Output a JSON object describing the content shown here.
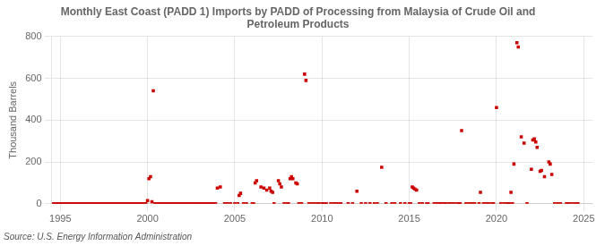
{
  "chart_data": {
    "type": "scatter",
    "title": "Monthly East Coast (PADD 1) Imports by PADD of Processing from Malaysia of Crude Oil and\nPetroleum Products",
    "ylabel": "Thousand Barrels",
    "source": "Source: U.S. Energy Information Administration",
    "color": "#cc0000",
    "marker": "square",
    "grid": true,
    "legend": false,
    "xlim": [
      1994.5,
      2025.5
    ],
    "ylim": [
      0,
      800
    ],
    "xticks": [
      1995,
      2000,
      2005,
      2010,
      2015,
      2020,
      2025
    ],
    "yticks": [
      0,
      200,
      400,
      600,
      800
    ],
    "x": [
      1994.6,
      1994.7,
      1994.8,
      1994.9,
      1995.0,
      1995.1,
      1995.2,
      1995.3,
      1995.4,
      1995.5,
      1995.6,
      1995.7,
      1995.8,
      1995.9,
      1996.0,
      1996.1,
      1996.2,
      1996.3,
      1996.4,
      1996.5,
      1996.6,
      1996.7,
      1996.8,
      1996.9,
      1997.0,
      1997.1,
      1997.2,
      1997.3,
      1997.4,
      1997.5,
      1997.6,
      1997.7,
      1997.8,
      1997.9,
      1998.0,
      1998.1,
      1998.2,
      1998.3,
      1998.4,
      1998.5,
      1998.6,
      1998.7,
      1998.8,
      1998.9,
      1999.0,
      1999.1,
      1999.2,
      1999.3,
      1999.4,
      1999.5,
      1999.6,
      1999.7,
      1999.8,
      1999.9,
      2000.0,
      2000.08,
      2000.17,
      2000.25,
      2000.33,
      2000.42,
      2000.5,
      2000.6,
      2000.7,
      2000.8,
      2000.9,
      2001.0,
      2001.1,
      2001.2,
      2001.3,
      2001.4,
      2001.5,
      2001.6,
      2001.7,
      2001.8,
      2001.9,
      2002.0,
      2002.1,
      2002.2,
      2002.3,
      2002.4,
      2002.5,
      2002.6,
      2002.7,
      2002.8,
      2002.9,
      2003.0,
      2003.1,
      2003.2,
      2003.3,
      2003.4,
      2003.5,
      2003.6,
      2003.7,
      2003.8,
      2003.9,
      2004.0,
      2004.17,
      2004.42,
      2004.58,
      2004.75,
      2005.0,
      2005.17,
      2005.25,
      2005.33,
      2005.5,
      2005.67,
      2006.0,
      2006.08,
      2006.17,
      2006.25,
      2006.5,
      2006.67,
      2006.83,
      2007.0,
      2007.08,
      2007.17,
      2007.25,
      2007.5,
      2007.58,
      2007.67,
      2007.83,
      2008.0,
      2008.08,
      2008.17,
      2008.25,
      2008.33,
      2008.5,
      2008.58,
      2008.67,
      2008.83,
      2009.0,
      2009.08,
      2009.25,
      2009.42,
      2009.58,
      2009.75,
      2009.83,
      2010.0,
      2010.08,
      2010.17,
      2010.25,
      2010.5,
      2010.67,
      2010.83,
      2011.0,
      2011.08,
      2011.5,
      2011.75,
      2012.0,
      2012.25,
      2012.5,
      2012.75,
      2013.0,
      2013.17,
      2013.42,
      2013.67,
      2014.0,
      2014.17,
      2014.5,
      2014.75,
      2015.0,
      2015.08,
      2015.17,
      2015.25,
      2015.33,
      2015.42,
      2015.58,
      2015.75,
      2016.0,
      2016.08,
      2016.42,
      2016.58,
      2016.75,
      2016.83,
      2017.0,
      2017.08,
      2017.25,
      2017.42,
      2017.58,
      2017.75,
      2017.83,
      2017.92,
      2018.0,
      2018.25,
      2018.42,
      2018.58,
      2018.75,
      2019.0,
      2019.08,
      2019.25,
      2019.42,
      2019.58,
      2019.75,
      2019.83,
      2020.0,
      2020.25,
      2020.42,
      2020.58,
      2020.67,
      2020.75,
      2020.83,
      2020.92,
      2021.0,
      2021.17,
      2021.25,
      2021.42,
      2021.58,
      2021.75,
      2022.0,
      2022.08,
      2022.17,
      2022.25,
      2022.33,
      2022.5,
      2022.58,
      2022.75,
      2023.0,
      2023.08,
      2023.17,
      2023.33,
      2023.5,
      2023.67,
      2024.0,
      2024.08,
      2024.25,
      2024.42,
      2024.58,
      2024.67
    ],
    "values": [
      0,
      0,
      0,
      0,
      0,
      0,
      0,
      0,
      0,
      0,
      0,
      0,
      0,
      0,
      0,
      0,
      0,
      0,
      0,
      0,
      0,
      0,
      0,
      0,
      0,
      0,
      0,
      0,
      0,
      0,
      0,
      0,
      0,
      0,
      0,
      0,
      0,
      0,
      0,
      0,
      0,
      0,
      0,
      0,
      0,
      0,
      0,
      0,
      0,
      0,
      0,
      0,
      0,
      0,
      15,
      120,
      130,
      10,
      540,
      0,
      0,
      0,
      0,
      0,
      0,
      0,
      0,
      0,
      0,
      0,
      0,
      0,
      0,
      0,
      0,
      0,
      0,
      0,
      0,
      0,
      0,
      0,
      0,
      0,
      0,
      0,
      0,
      0,
      0,
      0,
      0,
      0,
      0,
      0,
      0,
      75,
      80,
      0,
      0,
      0,
      0,
      0,
      40,
      50,
      0,
      0,
      0,
      0,
      100,
      110,
      80,
      75,
      65,
      75,
      60,
      55,
      0,
      110,
      95,
      80,
      0,
      0,
      0,
      120,
      130,
      120,
      100,
      95,
      0,
      0,
      620,
      590,
      0,
      0,
      0,
      0,
      0,
      0,
      0,
      0,
      0,
      0,
      0,
      0,
      0,
      0,
      0,
      0,
      60,
      0,
      0,
      0,
      0,
      0,
      175,
      0,
      0,
      0,
      0,
      0,
      0,
      0,
      80,
      75,
      70,
      65,
      0,
      0,
      0,
      0,
      0,
      0,
      0,
      0,
      0,
      0,
      0,
      0,
      0,
      0,
      0,
      0,
      350,
      0,
      0,
      0,
      0,
      0,
      55,
      0,
      0,
      0,
      0,
      0,
      460,
      0,
      0,
      0,
      0,
      0,
      55,
      0,
      190,
      770,
      750,
      320,
      290,
      0,
      165,
      305,
      310,
      295,
      270,
      155,
      160,
      130,
      200,
      190,
      140,
      0,
      0,
      0,
      0,
      0,
      0,
      0,
      0,
      0
    ]
  }
}
